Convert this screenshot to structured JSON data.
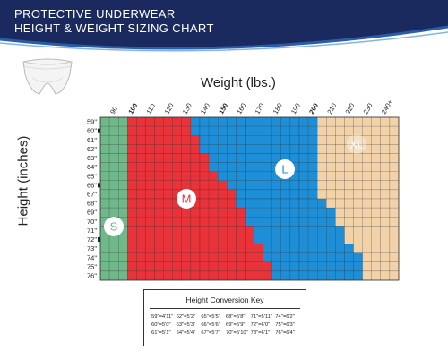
{
  "header": {
    "line1": "PROTECTIVE UNDERWEAR",
    "line2": "HEIGHT & WEIGHT SIZING CHART"
  },
  "colors": {
    "header_navy": "#1b2a5e",
    "size_s": "#6fb88a",
    "size_m": "#e8333a",
    "size_l": "#1e8fd6",
    "size_xl": "#f2d2a8"
  },
  "product_icon": "underwear-icon",
  "chart_data": {
    "type": "heatmap",
    "xlabel": "Weight (lbs.)",
    "ylabel": "Height (inches)",
    "x_tick_labels": [
      "90",
      "100",
      "110",
      "120",
      "130",
      "140",
      "150",
      "160",
      "170",
      "180",
      "190",
      "200",
      "210",
      "220",
      "230",
      "240+"
    ],
    "y_tick_labels": [
      "59\"",
      "60\"",
      "61\"",
      "62\"",
      "63\"",
      "64\"",
      "65\"",
      "66\"",
      "67\"",
      "68\"",
      "69\"",
      "70\"",
      "71\"",
      "72\"",
      "73\"",
      "74\"",
      "75\"",
      "76\""
    ],
    "weight_range_lbs": [
      84,
      245
    ],
    "height_range_in": [
      59,
      76
    ],
    "column_step_lbs": 5,
    "sizes": [
      {
        "name": "S",
        "color": "#6fb88a"
      },
      {
        "name": "M",
        "color": "#e8333a"
      },
      {
        "name": "L",
        "color": "#1e8fd6"
      },
      {
        "name": "XL",
        "color": "#f2d2a8"
      }
    ],
    "s_max_weight_lbs": 100,
    "m_max_weight_by_height": [
      130,
      130,
      135,
      135,
      140,
      140,
      145,
      150,
      155,
      155,
      160,
      160,
      165,
      165,
      170,
      170,
      175,
      175
    ],
    "l_max_weight_lbs": 200,
    "xl_rows_with_l_extension": {
      "from_height_in": 67,
      "l_max_weight_lbs": 225
    },
    "grid": true
  },
  "conversion_key": {
    "title": "Height Conversion Key",
    "entries": [
      "59\"=4'11\"",
      "62\"=5'2\"",
      "65\"=5'5\"",
      "68\"=5'8\"",
      "71\"=5'11\"",
      "74\"=6'2\"",
      "60\"=5'0\"",
      "63\"=5'3\"",
      "66\"=5'6\"",
      "69\"=5'9\"",
      "72\"=6'0\"",
      "75\"=6'3\"",
      "61\"=5'1\"",
      "64\"=5'4\"",
      "67\"=5'7\"",
      "70\"=5'10\"",
      "73\"=6'1\"",
      "76\"=6'4\""
    ]
  }
}
